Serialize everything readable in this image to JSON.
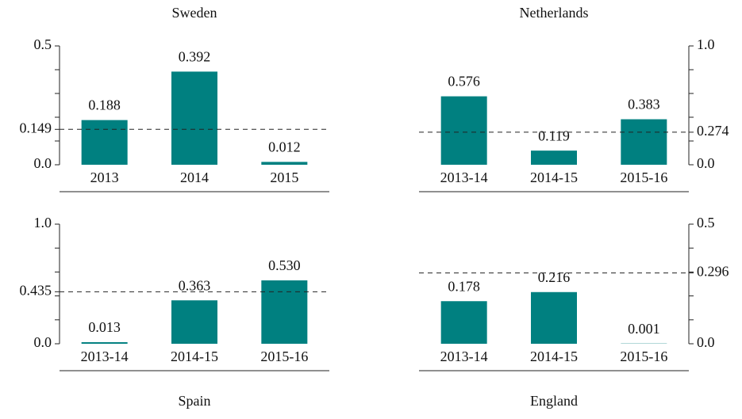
{
  "chart_data": [
    {
      "type": "bar",
      "title": "Sweden",
      "title_position": "top",
      "axis_side": "left",
      "color": "#008080",
      "categories": [
        "2013",
        "2014",
        "2015"
      ],
      "values": [
        0.188,
        0.392,
        0.012
      ],
      "value_labels": [
        "0.188",
        "0.392",
        "0.012"
      ],
      "ylim": [
        0,
        0.5
      ],
      "yticks": [
        {
          "value": 0,
          "label": "0.0"
        },
        0.149,
        0.5
      ],
      "minor_yticks": [
        0.1,
        0.2,
        0.3,
        0.4
      ],
      "reference_line": 0.149
    },
    {
      "type": "bar",
      "title": "Netherlands",
      "title_position": "top",
      "axis_side": "right",
      "color": "#008080",
      "categories": [
        "2013-14",
        "2014-15",
        "2015-16"
      ],
      "values": [
        0.576,
        0.119,
        0.383
      ],
      "value_labels": [
        "0.576",
        "0.119",
        "0.383"
      ],
      "ylim": [
        0,
        1
      ],
      "yticks": [
        {
          "value": 0,
          "label": "0.0"
        },
        0.274,
        {
          "value": 1,
          "label": "1.0"
        }
      ],
      "minor_yticks": [
        0.2,
        0.4,
        0.6,
        0.8
      ],
      "reference_line": 0.274
    },
    {
      "type": "bar",
      "title": "Spain",
      "title_position": "bottom",
      "axis_side": "left",
      "color": "#008080",
      "categories": [
        "2013-14",
        "2014-15",
        "2015-16"
      ],
      "values": [
        0.013,
        0.363,
        0.53
      ],
      "value_labels": [
        "0.013",
        "0.363",
        "0.530"
      ],
      "ylim": [
        0,
        1
      ],
      "yticks": [
        {
          "value": 0,
          "label": "0.0"
        },
        0.435,
        {
          "value": 1,
          "label": "1.0"
        }
      ],
      "minor_yticks": [
        0.2,
        0.4,
        0.6,
        0.8
      ],
      "reference_line": 0.435
    },
    {
      "type": "bar",
      "title": "England",
      "title_position": "bottom",
      "axis_side": "right",
      "color": "#008080",
      "categories": [
        "2013-14",
        "2014-15",
        "2015-16"
      ],
      "values": [
        0.178,
        0.216,
        0.001
      ],
      "value_labels": [
        "0.178",
        "0.216",
        "0.001"
      ],
      "ylim": [
        0,
        0.5
      ],
      "yticks": [
        {
          "value": 0,
          "label": "0.0"
        },
        0.296,
        0.5
      ],
      "minor_yticks": [
        0.1,
        0.2,
        0.3,
        0.4
      ],
      "reference_line": 0.296
    }
  ]
}
